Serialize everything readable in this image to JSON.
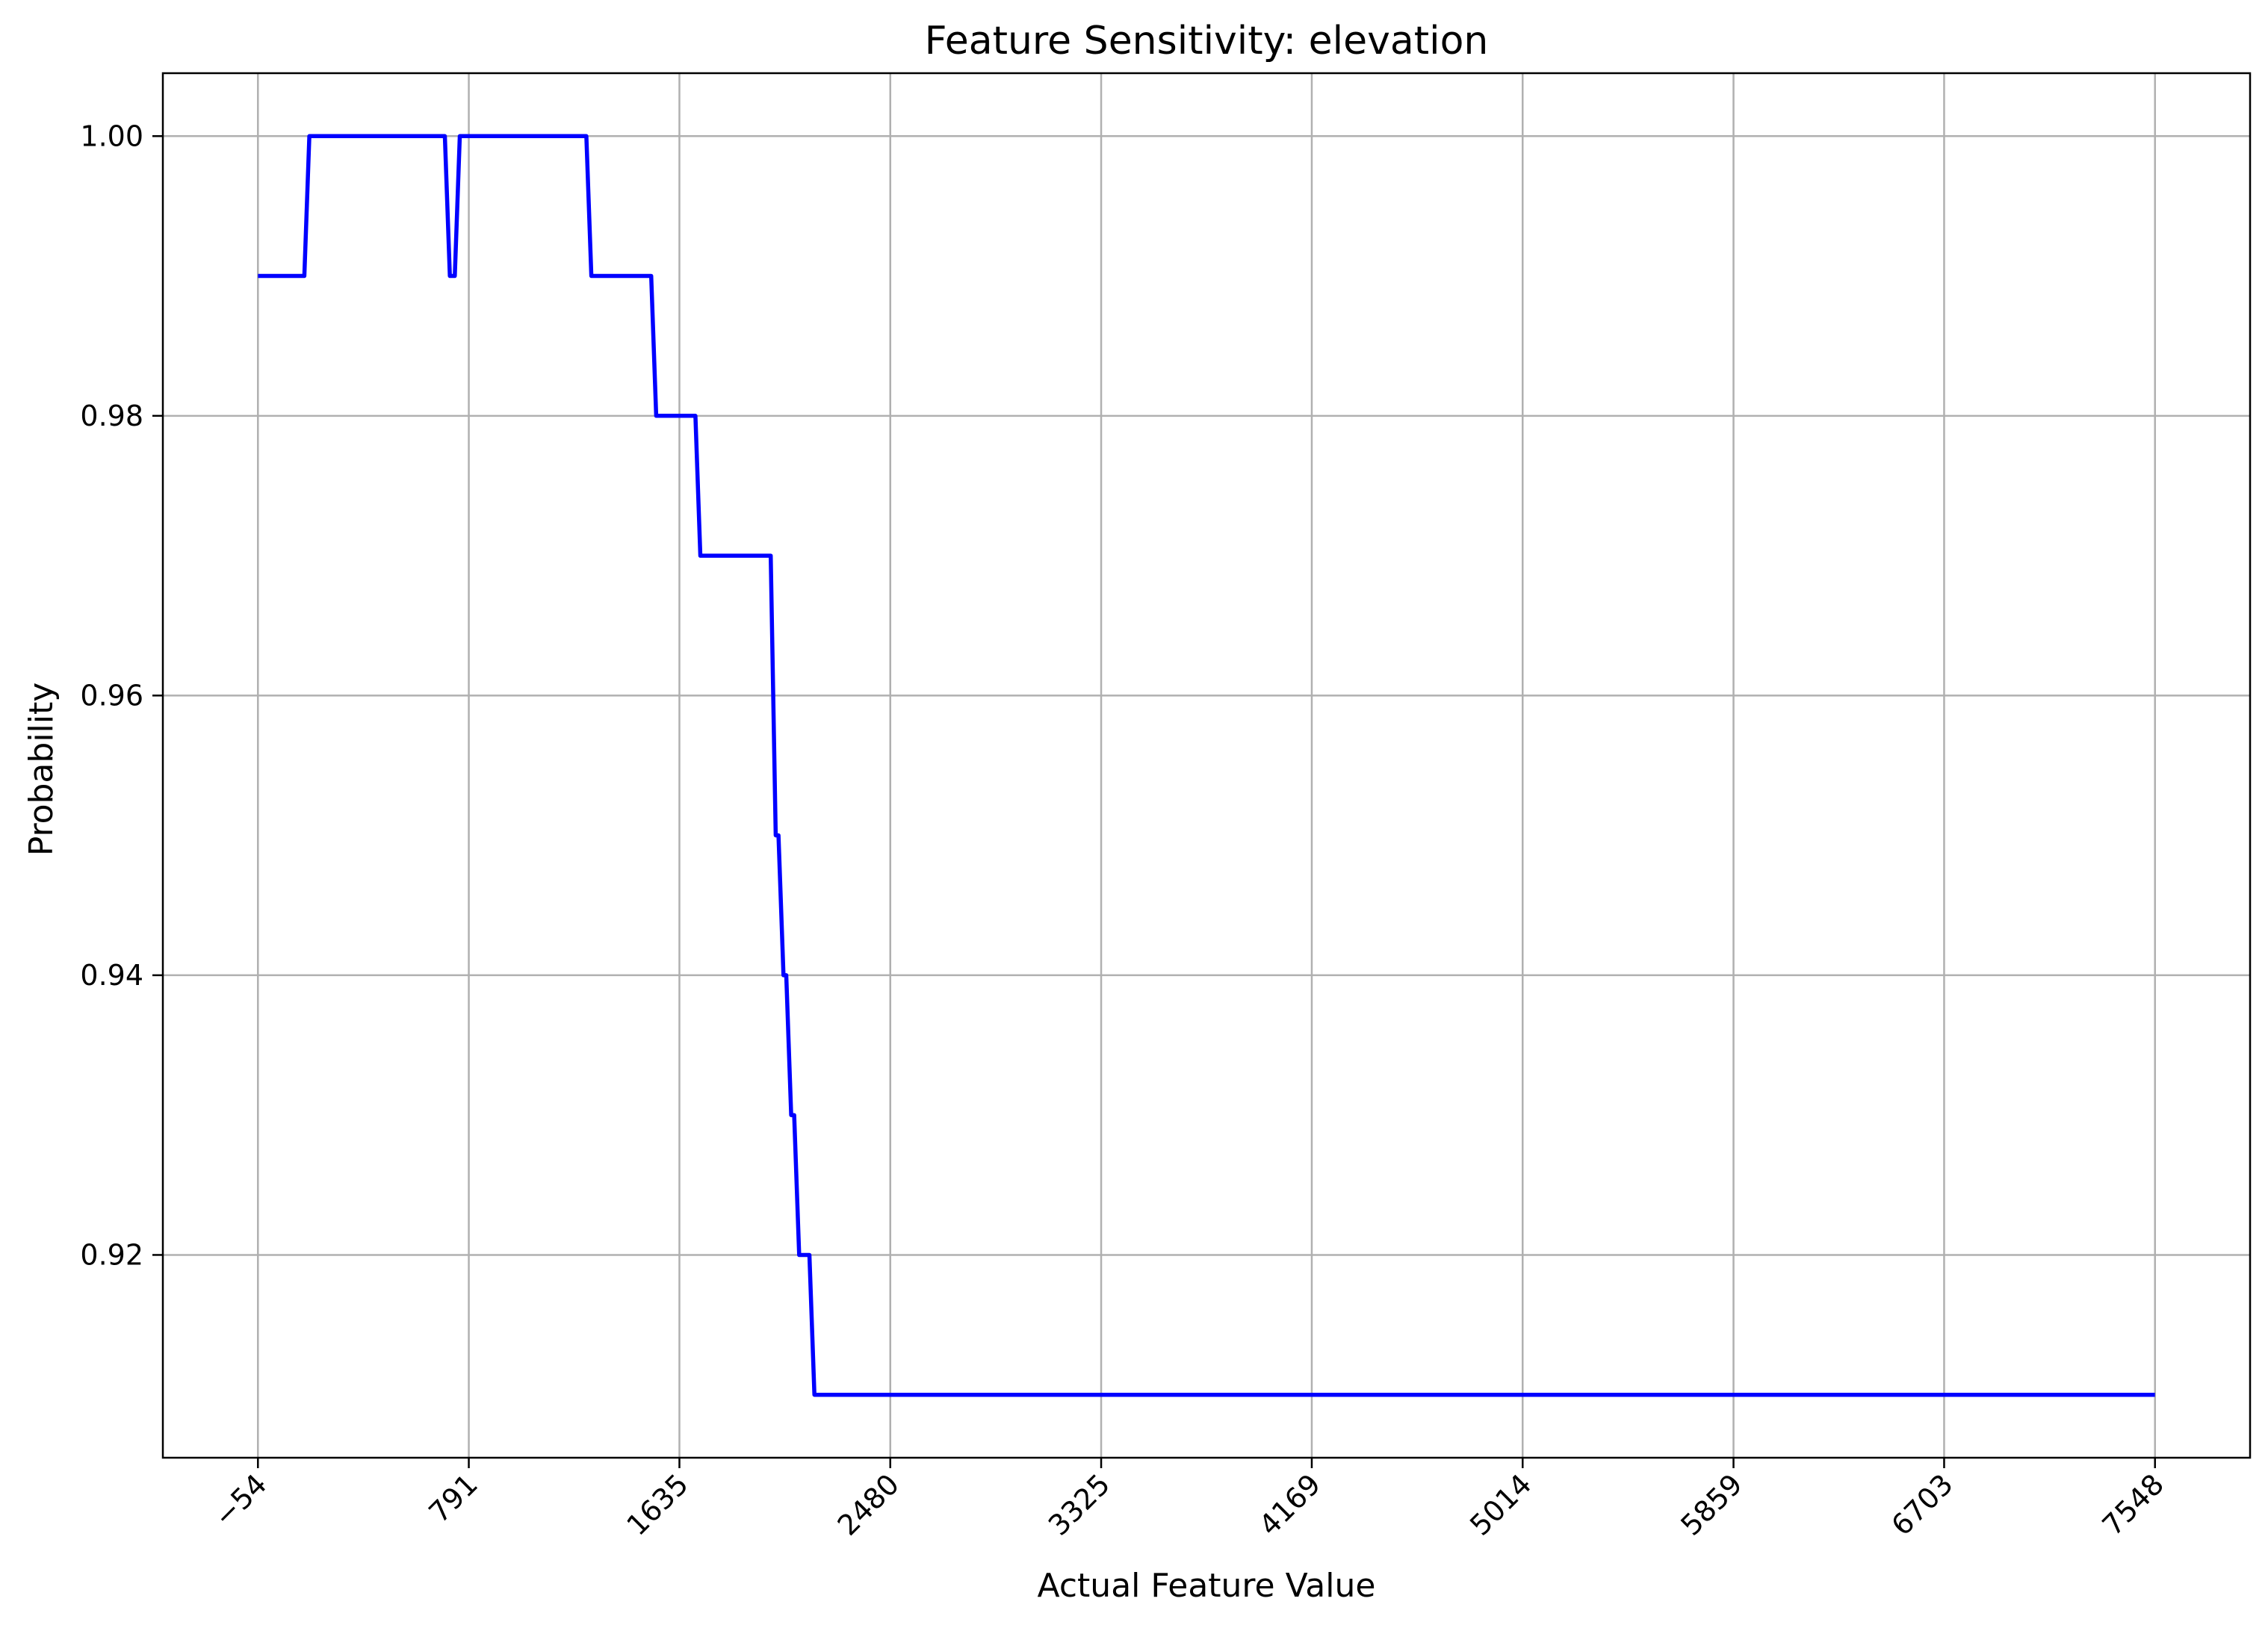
{
  "chart_data": {
    "type": "line",
    "title": "Feature Sensitivity: elevation",
    "xlabel": "Actual Feature Value",
    "ylabel": "Probability",
    "xlim": [
      -435,
      7929
    ],
    "ylim": [
      0.9055,
      1.0045
    ],
    "x_ticks": [
      -54,
      791,
      1635,
      2480,
      3325,
      4169,
      5014,
      5859,
      6703,
      7548
    ],
    "x_tick_labels": [
      "−54",
      "791",
      "1635",
      "2480",
      "3325",
      "4169",
      "5014",
      "5859",
      "6703",
      "7548"
    ],
    "y_ticks": [
      0.92,
      0.94,
      0.96,
      0.98,
      1.0
    ],
    "y_tick_labels": [
      "0.92",
      "0.94",
      "0.96",
      "0.98",
      "1.00"
    ],
    "grid": true,
    "series": [
      {
        "color": "#0000ff",
        "x": [
          -54,
          132,
          152,
          695,
          715,
          735,
          755,
          1262,
          1282,
          1522,
          1542,
          1699,
          1719,
          2001,
          2021,
          2032,
          2052,
          2063,
          2083,
          2095,
          2115,
          2156,
          2176,
          7548
        ],
        "y": [
          0.99,
          0.99,
          1.0,
          1.0,
          0.99,
          0.99,
          1.0,
          1.0,
          0.99,
          0.99,
          0.98,
          0.98,
          0.97,
          0.97,
          0.95,
          0.95,
          0.94,
          0.94,
          0.93,
          0.93,
          0.92,
          0.92,
          0.91,
          0.91
        ]
      }
    ]
  }
}
